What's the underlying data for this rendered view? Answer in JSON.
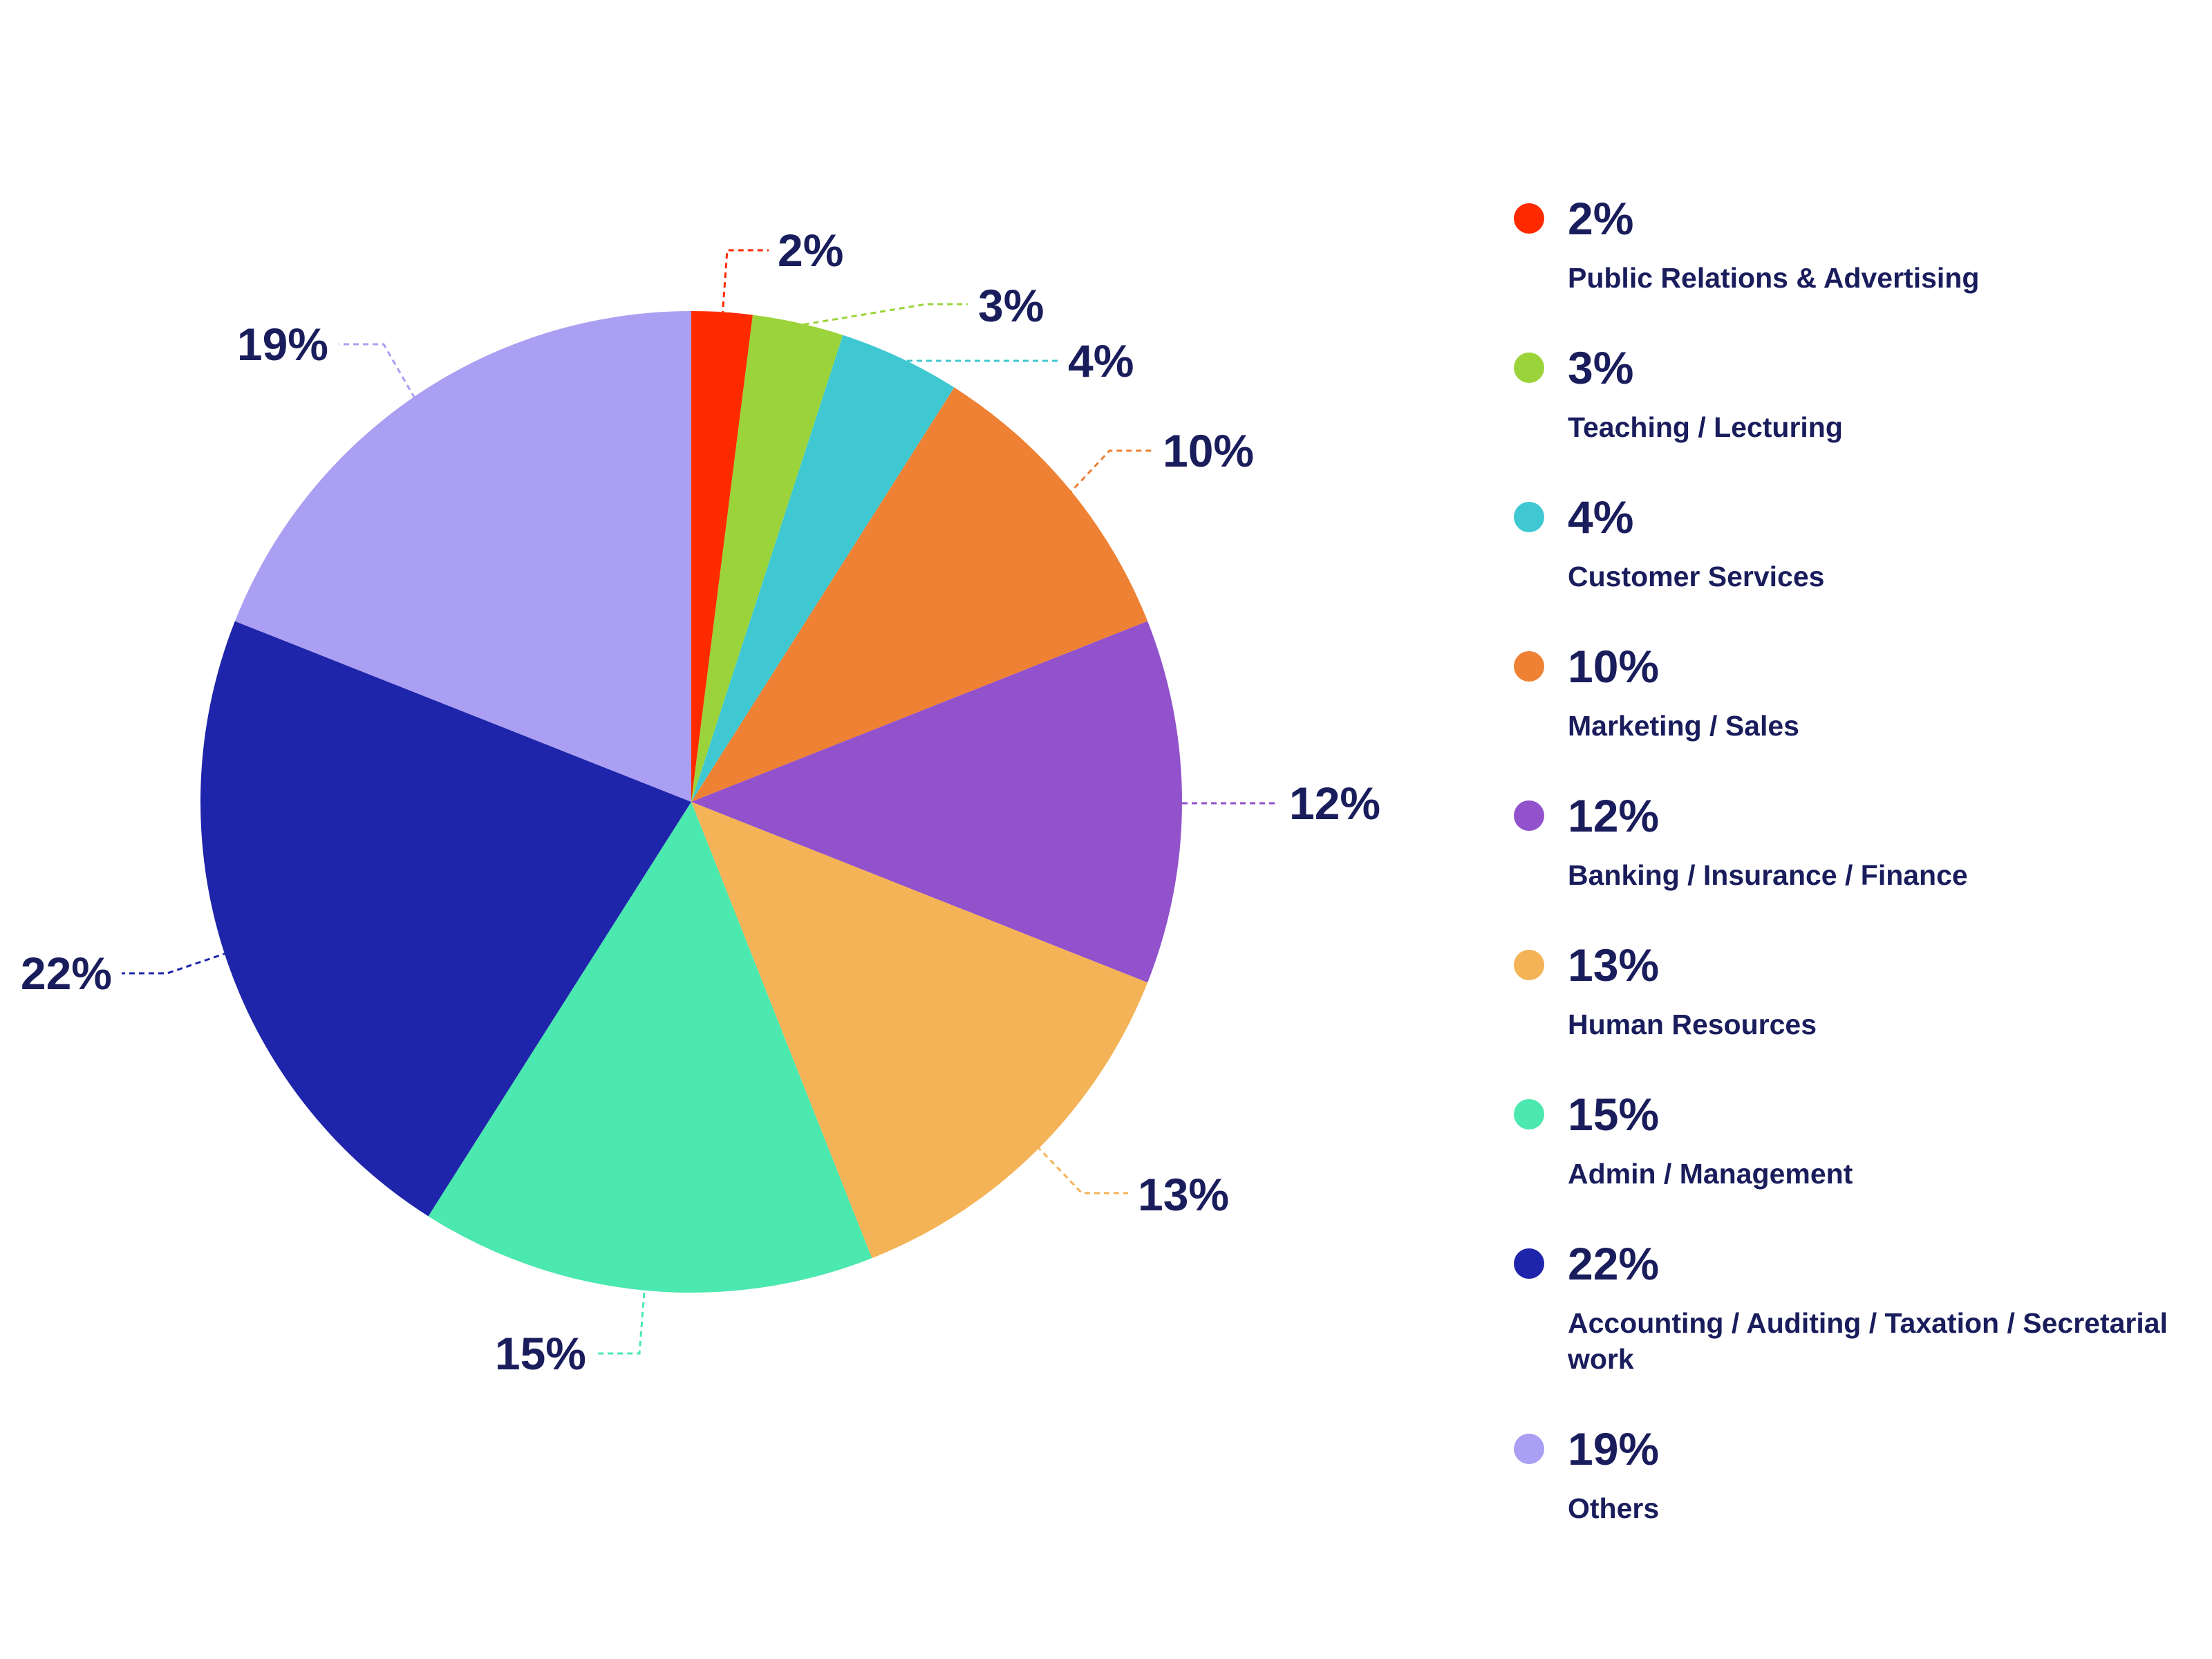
{
  "colors": {
    "text": "#1a1d5c",
    "background": "#ffffff"
  },
  "chart_data": {
    "type": "pie",
    "title": "",
    "slices": [
      {
        "label": "Public Relations & Advertising",
        "value": 2,
        "display": "2%",
        "color": "#ff2a00"
      },
      {
        "label": "Teaching / Lecturing",
        "value": 3,
        "display": "3%",
        "color": "#9bd43a"
      },
      {
        "label": "Customer Services",
        "value": 4,
        "display": "4%",
        "color": "#40c8d2"
      },
      {
        "label": "Marketing / Sales",
        "value": 10,
        "display": "10%",
        "color": "#ee8133"
      },
      {
        "label": "Banking / Insurance / Finance",
        "value": 12,
        "display": "12%",
        "color": "#9152cc"
      },
      {
        "label": "Human Resources",
        "value": 13,
        "display": "13%",
        "color": "#f4b356"
      },
      {
        "label": "Admin / Management",
        "value": 15,
        "display": "15%",
        "color": "#4be8b0"
      },
      {
        "label": "Accounting / Auditing / Taxation / Secretarial work",
        "value": 22,
        "display": "22%",
        "color": "#1e25aa"
      },
      {
        "label": "Others",
        "value": 19,
        "display": "19%",
        "color": "#aa9ff2"
      }
    ],
    "legend_position": "right"
  }
}
